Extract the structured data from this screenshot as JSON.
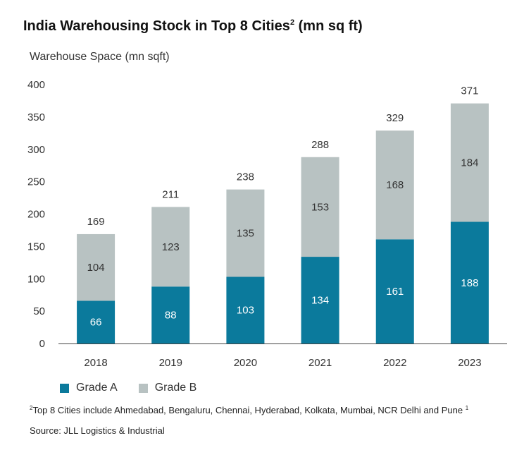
{
  "title": "India Warehousing Stock in Top 8 Cities",
  "title_sup": "2",
  "title_suffix": " (mn sq ft)",
  "footnote_sup": "2",
  "footnote_text": "Top 8 Cities include Ahmedabad, Bengaluru, Chennai, Hyderabad, Kolkata, Mumbai, NCR Delhi and Pune",
  "footnote_end_sup": "1",
  "source": "Source: JLL Logistics & Industrial",
  "colors": {
    "grade_a": "#0b7a9c",
    "grade_b": "#b8c2c2"
  },
  "chart_data": {
    "type": "bar",
    "stacked": true,
    "ylabel": "Warehouse Space (mn sqft)",
    "ylim": [
      0,
      400
    ],
    "yticks": [
      0,
      50,
      100,
      150,
      200,
      250,
      300,
      350,
      400
    ],
    "categories": [
      "2018",
      "2019",
      "2020",
      "2021",
      "2022",
      "2023"
    ],
    "series": [
      {
        "name": "Grade A",
        "values": [
          66,
          88,
          103,
          134,
          161,
          188
        ]
      },
      {
        "name": "Grade B",
        "values": [
          104,
          123,
          135,
          153,
          168,
          184
        ]
      }
    ],
    "totals": [
      169,
      211,
      238,
      288,
      329,
      371
    ]
  }
}
